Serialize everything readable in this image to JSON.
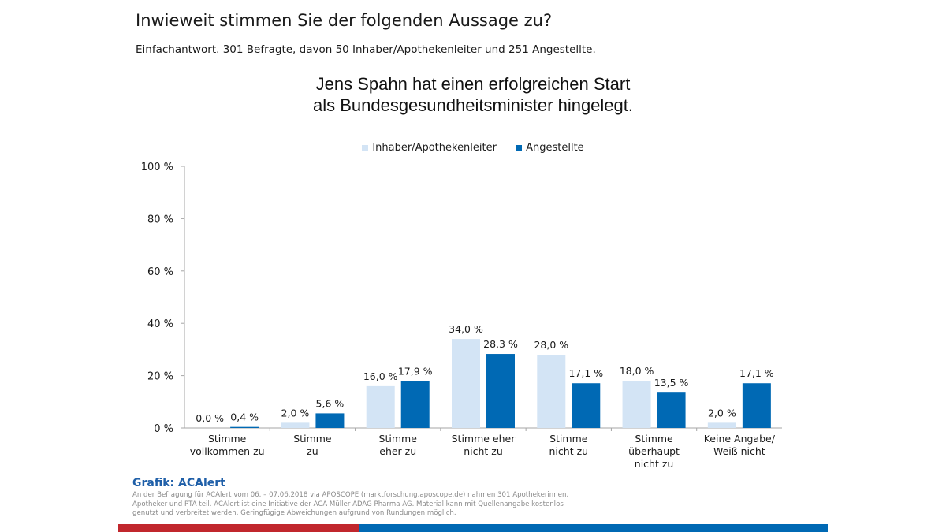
{
  "header": {
    "title": "Inwieweit stimmen Sie der folgenden Aussage zu?",
    "subtitle": "Einfachantwort. 301 Befragte, davon 50 Inhaber/Apothekenleiter und 251 Angestellte."
  },
  "colors": {
    "series_light": "#d3e4f5",
    "series_dark": "#0069b4",
    "brand_red": "#c1272d",
    "brand_blue": "#0069b4",
    "credit": "#1f5fa8"
  },
  "chart_data": {
    "type": "bar",
    "title_lines": [
      "Jens Spahn hat einen erfolgreichen Start",
      "als Bundesgesundheitsminister hingelegt."
    ],
    "xlabel": "",
    "ylabel": "",
    "ylim": [
      0,
      100
    ],
    "yticks": [
      0,
      20,
      40,
      60,
      80,
      100
    ],
    "ytick_labels": [
      "0 %",
      "20 %",
      "40 %",
      "60 %",
      "80 %",
      "100 %"
    ],
    "grid": false,
    "legend_position": "top-center",
    "categories": [
      [
        "Stimme",
        "vollkommen zu"
      ],
      [
        "Stimme",
        "zu"
      ],
      [
        "Stimme",
        "eher zu"
      ],
      [
        "Stimme eher",
        "nicht zu"
      ],
      [
        "Stimme",
        "nicht zu"
      ],
      [
        "Stimme",
        "überhaupt",
        "nicht zu"
      ],
      [
        "Keine Angabe/",
        "Weiß nicht"
      ]
    ],
    "series": [
      {
        "name": "Inhaber/Apothekenleiter",
        "values": [
          0.0,
          2.0,
          16.0,
          34.0,
          28.0,
          18.0,
          2.0
        ],
        "labels": [
          "0,0 %",
          "2,0 %",
          "16,0 %",
          "34,0 %",
          "28,0 %",
          "18,0 %",
          "2,0 %"
        ]
      },
      {
        "name": "Angestellte",
        "values": [
          0.4,
          5.6,
          17.9,
          28.3,
          17.1,
          13.5,
          17.1
        ],
        "labels": [
          "0,4 %",
          "5,6 %",
          "17,9 %",
          "28,3 %",
          "17,1 %",
          "13,5 %",
          "17,1 %"
        ]
      }
    ]
  },
  "footer": {
    "credit": "Grafik: ACAlert",
    "note": "An der Befragung für ACAlert vom 06. – 07.06.2018 via APOSCOPE (marktforschung.aposcope.de) nahmen 301 Apothekerinnen, Apotheker und PTA teil. ACAlert ist eine Initiative der ACA Müller ADAG Pharma AG. Material kann mit Quellenangabe kostenlos genutzt und verbreitet werden. Geringfügige Abweichungen aufgrund von Rundungen möglich."
  }
}
